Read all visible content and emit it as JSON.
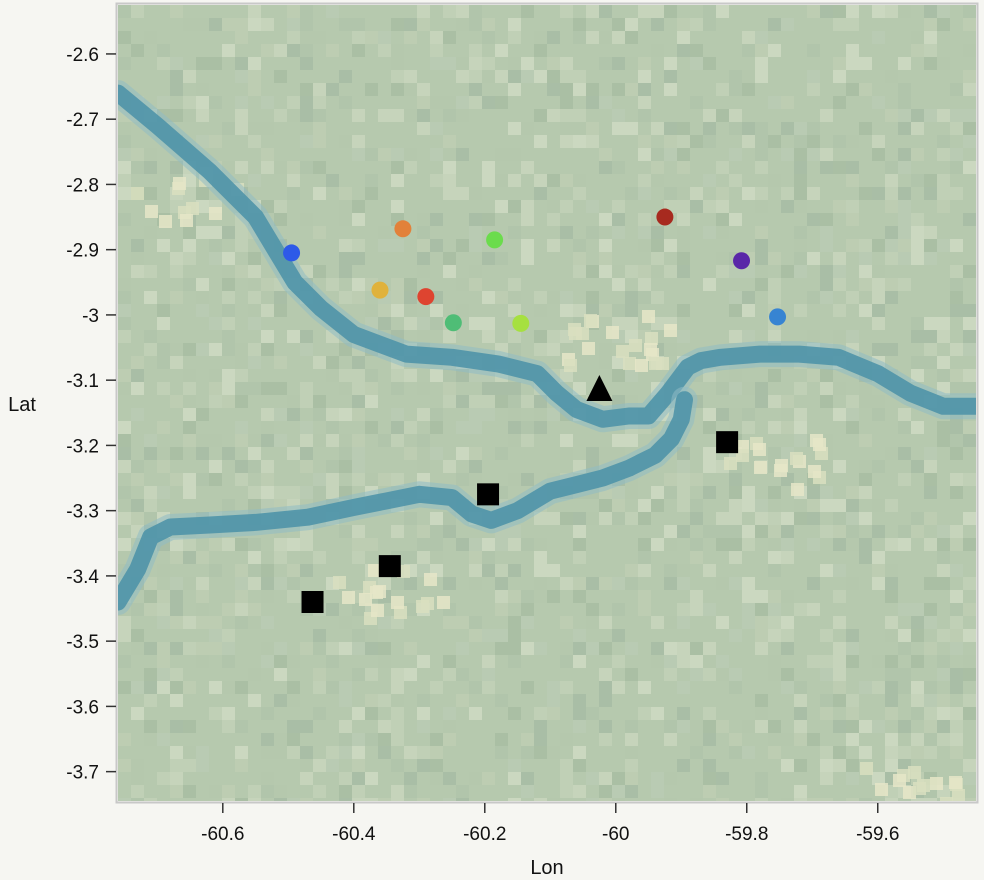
{
  "chart_data": {
    "type": "scatter",
    "xlabel": "Lon",
    "ylabel": "Lat",
    "xlim": [
      -60.76,
      -59.45
    ],
    "ylim": [
      -3.745,
      -2.525
    ],
    "x_ticks": [
      -60.6,
      -60.4,
      -60.2,
      -60,
      -59.8,
      -59.6
    ],
    "x_tick_labels": [
      "-60.6",
      "-60.4",
      "-60.2",
      "-60",
      "-59.8",
      "-59.6"
    ],
    "y_ticks": [
      -2.6,
      -2.7,
      -2.8,
      -2.9,
      -3,
      -3.1,
      -3.2,
      -3.3,
      -3.4,
      -3.5,
      -3.6,
      -3.7
    ],
    "y_tick_labels": [
      "-2.6",
      "-2.7",
      "-2.8",
      "-2.9",
      "-3",
      "-3.1",
      "-3.2",
      "-3.3",
      "-3.4",
      "-3.5",
      "-3.6",
      "-3.7"
    ],
    "background": "satellite imagery map with river channels",
    "colors": {
      "land": "#b6c9ae",
      "river": "#4f93a8",
      "frame": "#c8c8c8"
    },
    "rivers": [
      {
        "lon": [
          -60.76,
          -60.7,
          -60.66,
          -60.62,
          -60.58,
          -60.55,
          -60.52,
          -60.49,
          -60.45,
          -60.4,
          -60.32,
          -60.25,
          -60.18,
          -60.12,
          -60.09,
          -60.06,
          -60.02,
          -59.98,
          -59.95,
          -59.92,
          -59.89,
          -59.87,
          -59.84,
          -59.78,
          -59.72,
          -59.66,
          -59.6,
          -59.55,
          -59.5,
          -59.45
        ],
        "lat": [
          -2.66,
          -2.71,
          -2.745,
          -2.78,
          -2.82,
          -2.85,
          -2.9,
          -2.95,
          -2.99,
          -3.03,
          -3.06,
          -3.065,
          -3.075,
          -3.09,
          -3.12,
          -3.145,
          -3.16,
          -3.155,
          -3.155,
          -3.12,
          -3.08,
          -3.07,
          -3.065,
          -3.06,
          -3.06,
          -3.065,
          -3.09,
          -3.12,
          -3.14,
          -3.14
        ]
      },
      {
        "lon": [
          -60.76,
          -60.73,
          -60.71,
          -60.68,
          -60.62,
          -60.55,
          -60.47,
          -60.4,
          -60.35,
          -60.3,
          -60.25,
          -60.22,
          -60.19,
          -60.15,
          -60.1,
          -60.06,
          -60.02,
          -59.98,
          -59.94,
          -59.915,
          -59.9,
          -59.895
        ],
        "lat": [
          -3.44,
          -3.39,
          -3.34,
          -3.325,
          -3.322,
          -3.318,
          -3.31,
          -3.295,
          -3.285,
          -3.275,
          -3.28,
          -3.305,
          -3.315,
          -3.3,
          -3.27,
          -3.26,
          -3.25,
          -3.235,
          -3.215,
          -3.19,
          -3.16,
          -3.13
        ]
      }
    ],
    "series": [
      {
        "marker": "circle",
        "points": [
          {
            "x": -60.495,
            "y": -2.905,
            "color": "#2d5ae8"
          },
          {
            "x": -60.325,
            "y": -2.868,
            "color": "#e2813a"
          },
          {
            "x": -60.36,
            "y": -2.962,
            "color": "#e0b23c"
          },
          {
            "x": -60.29,
            "y": -2.972,
            "color": "#de4430"
          },
          {
            "x": -60.248,
            "y": -3.012,
            "color": "#4fbd76"
          },
          {
            "x": -60.185,
            "y": -2.885,
            "color": "#6bdc4c"
          },
          {
            "x": -60.145,
            "y": -3.013,
            "color": "#a6e040"
          },
          {
            "x": -59.925,
            "y": -2.85,
            "color": "#a72a1f"
          },
          {
            "x": -59.808,
            "y": -2.917,
            "color": "#5a27a8"
          },
          {
            "x": -59.753,
            "y": -3.003,
            "color": "#3784d2"
          }
        ]
      },
      {
        "marker": "triangle",
        "points": [
          {
            "x": -60.025,
            "y": -3.115,
            "color": "#000000"
          }
        ]
      },
      {
        "marker": "square",
        "points": [
          {
            "x": -60.463,
            "y": -3.44,
            "color": "#000000"
          },
          {
            "x": -60.345,
            "y": -3.385,
            "color": "#000000"
          },
          {
            "x": -60.195,
            "y": -3.275,
            "color": "#000000"
          },
          {
            "x": -59.83,
            "y": -3.195,
            "color": "#000000"
          }
        ]
      }
    ]
  }
}
